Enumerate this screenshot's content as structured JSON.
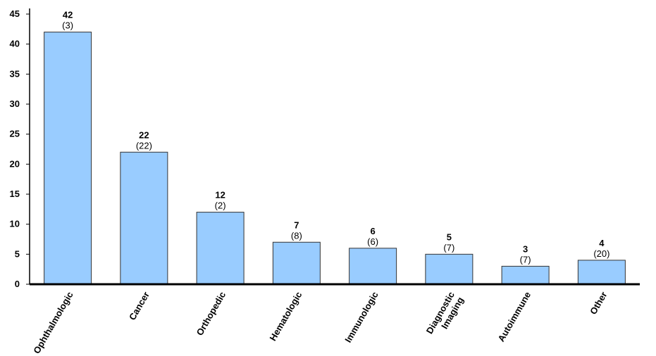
{
  "chart_data": {
    "type": "bar",
    "title": "",
    "xlabel": "",
    "ylabel": "",
    "ylim": [
      0,
      45
    ],
    "yticks": [
      0,
      5,
      10,
      15,
      20,
      25,
      30,
      35,
      40,
      45
    ],
    "grid": false,
    "legend": "none",
    "categories": [
      [
        "Ophthalmologic"
      ],
      [
        "Cancer"
      ],
      [
        "Orthopedic"
      ],
      [
        "Hematologic"
      ],
      [
        "Immunologic"
      ],
      [
        "Diagnostic",
        "Imaging"
      ],
      [
        "Autoimmune"
      ],
      [
        "Other"
      ]
    ],
    "values": [
      42,
      22,
      12,
      7,
      6,
      5,
      3,
      4
    ],
    "secondary_labels": [
      "(3)",
      "(22)",
      "(2)",
      "(8)",
      "(6)",
      "(7)",
      "(7)",
      "(20)"
    ],
    "colors": {
      "bar_fill": "#99ccff",
      "bar_stroke": "#333333",
      "axis": "#000000"
    }
  }
}
